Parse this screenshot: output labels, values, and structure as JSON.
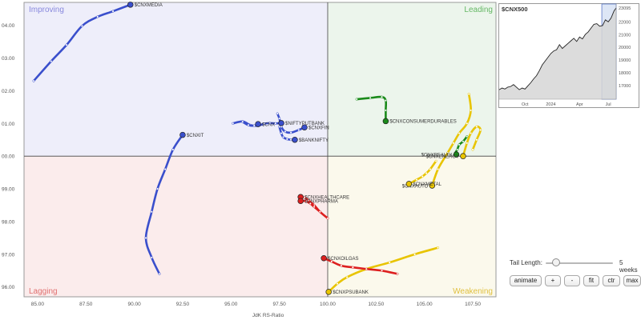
{
  "chart_data": [
    {
      "type": "scatter",
      "subtype": "relative-rotation-graph",
      "xlabel": "JdK RS-Ratio",
      "ylabel": "",
      "xlim": [
        84.3,
        108.7
      ],
      "ylim": [
        95.7,
        104.7
      ],
      "x_ticks": [
        "85.00",
        "87.50",
        "90.00",
        "92.50",
        "95.00",
        "97.50",
        "100.00",
        "102.50",
        "105.00",
        "107.50"
      ],
      "x_tick_values": [
        85,
        87.5,
        90,
        92.5,
        95,
        97.5,
        100,
        102.5,
        105,
        107.5
      ],
      "y_ticks": [
        "04.00",
        "03.00",
        "02.00",
        "01.00",
        "00.00",
        "99.00",
        "98.00",
        "97.00",
        "96.00"
      ],
      "y_tick_values": [
        104,
        103,
        102,
        101,
        100,
        99,
        98,
        97,
        96
      ],
      "center": [
        100,
        100
      ],
      "grid": false,
      "quadrants": [
        {
          "name": "Improving",
          "position": "top-left",
          "fill": "#eeeefa",
          "color": "#8888dd"
        },
        {
          "name": "Leading",
          "position": "top-right",
          "fill": "#ecf5ec",
          "color": "#66b866"
        },
        {
          "name": "Lagging",
          "position": "bottom-left",
          "fill": "#fbecec",
          "color": "#e07070"
        },
        {
          "name": "Weakening",
          "position": "bottom-right",
          "fill": "#fbf9ec",
          "color": "#e0c040"
        }
      ],
      "series": [
        {
          "name": "$CNXMEDIA",
          "color": "#3a4fcc",
          "label_side": "right",
          "x": [
            84.8,
            85.7,
            86.5,
            87.3,
            88.1,
            88.9,
            89.8
          ],
          "y": [
            102.3,
            102.9,
            103.4,
            103.98,
            104.26,
            104.43,
            104.63
          ]
        },
        {
          "name": "$CNXIT",
          "color": "#3a4fcc",
          "label_side": "right",
          "x": [
            91.3,
            90.9,
            90.6,
            90.9,
            91.2,
            91.6,
            92.0,
            92.5
          ],
          "y": [
            96.4,
            96.9,
            97.5,
            98.3,
            99.0,
            99.6,
            100.2,
            100.65
          ]
        },
        {
          "name": "$NIFTYPUTBANK",
          "color": "#3a4fcc",
          "label_side": "right",
          "x": [
            95.1,
            95.6,
            96.0,
            96.4,
            96.7,
            97.0,
            97.3,
            97.6
          ],
          "y": [
            101.0,
            101.06,
            100.95,
            100.93,
            100.99,
            101.01,
            101.0,
            101.01
          ]
        },
        {
          "name": "$CNXFIN",
          "color": "#3a4fcc",
          "label_side": "right",
          "x": [
            97.4,
            97.5,
            97.6,
            97.8,
            98.1,
            98.5,
            98.8
          ],
          "y": [
            101.3,
            101.15,
            100.9,
            100.75,
            100.72,
            100.8,
            100.88
          ]
        },
        {
          "name": "$BANKNIFTY",
          "color": "#3a4fcc",
          "label_side": "right",
          "x": [
            97.5,
            97.6,
            97.7,
            97.9,
            98.1,
            98.3
          ],
          "y": [
            100.9,
            100.7,
            100.58,
            100.52,
            100.5,
            100.5
          ]
        },
        {
          "name": "$CNX",
          "color": "#3a4fcc",
          "label_side": "right",
          "label_truncated": true,
          "x": [
            95.6,
            95.9,
            96.2,
            96.4
          ],
          "y": [
            101.05,
            100.95,
            100.93,
            100.98
          ]
        },
        {
          "name": "$CNXCONSUMERDURABLES",
          "color": "#1a8a1a",
          "label_side": "right",
          "x": [
            101.5,
            102.2,
            102.8,
            103.0,
            103.0,
            103.0
          ],
          "y": [
            101.74,
            101.78,
            101.81,
            101.7,
            101.4,
            101.07
          ]
        },
        {
          "name": "$CNXREALTY",
          "color": "#1a8a1a",
          "label_side": "left",
          "x": [
            107.2,
            107.0,
            106.8,
            106.7,
            106.6,
            106.65
          ],
          "y": [
            100.6,
            100.45,
            100.35,
            100.2,
            100.1,
            100.05
          ]
        },
        {
          "name": "$CNXAUTO",
          "color": "#e8c400",
          "label_side": "left",
          "x": [
            107.3,
            107.4,
            107.2,
            106.8,
            106.5,
            106.2,
            105.7,
            105.4
          ],
          "y": [
            101.9,
            101.4,
            101.0,
            100.7,
            100.4,
            100.1,
            99.6,
            99.1
          ]
        },
        {
          "name": "$CNXENERGY",
          "color": "#e8c400",
          "label_side": "left",
          "x": [
            107.5,
            107.7,
            107.9,
            107.7,
            107.4,
            107.2,
            107.0
          ],
          "y": [
            100.2,
            100.5,
            100.8,
            100.9,
            100.7,
            100.4,
            100.0
          ]
        },
        {
          "name": "$CNXMETAL",
          "color": "#e8c400",
          "label_side": "right",
          "x": [
            105.6,
            105.3,
            105.1,
            104.9,
            104.6,
            104.2
          ],
          "y": [
            99.85,
            99.6,
            99.48,
            99.38,
            99.28,
            99.15
          ]
        },
        {
          "name": "$CNXPSUBANK",
          "color": "#e8c400",
          "label_side": "right",
          "x": [
            105.7,
            104.5,
            103.2,
            102.0,
            101.0,
            100.5,
            100.05
          ],
          "y": [
            97.2,
            97.0,
            96.75,
            96.55,
            96.3,
            96.1,
            95.85
          ]
        },
        {
          "name": "$CNXHEALTHCARE",
          "color": "#dd1f1f",
          "label_side": "right",
          "x": [
            100.0,
            99.6,
            99.3,
            99.0,
            98.8,
            98.6
          ],
          "y": [
            98.1,
            98.3,
            98.5,
            98.65,
            98.73,
            98.75
          ]
        },
        {
          "name": "$CNXPHARMA",
          "color": "#dd1f1f",
          "label_side": "right",
          "x": [
            99.6,
            99.3,
            99.1,
            98.9,
            98.7,
            98.6
          ],
          "y": [
            98.3,
            98.45,
            98.55,
            98.62,
            98.64,
            98.63
          ]
        },
        {
          "name": "$CNXOILGAS",
          "color": "#dd1f1f",
          "label_side": "right",
          "x": [
            103.6,
            102.8,
            102.0,
            101.3,
            100.7,
            100.2,
            99.8
          ],
          "y": [
            96.4,
            96.5,
            96.55,
            96.6,
            96.65,
            96.78,
            96.88
          ]
        }
      ]
    },
    {
      "type": "area",
      "title": "$CNX500",
      "categories": [
        "Oct",
        "2024",
        "Apr",
        "Jul"
      ],
      "ylim": [
        15900,
        23400
      ],
      "y_ticks": [
        "23095",
        "22000",
        "21000",
        "20000",
        "19000",
        "18000",
        "17000"
      ],
      "y_tick_values": [
        23095,
        22000,
        21000,
        20000,
        19000,
        18000,
        17000
      ],
      "x": [
        0,
        4,
        8,
        12,
        16,
        20,
        24,
        28,
        32,
        36,
        40,
        44,
        48,
        52,
        56,
        60,
        64,
        68,
        72,
        76,
        80,
        84,
        88,
        92,
        96,
        100,
        104,
        108,
        112,
        116,
        120,
        124,
        128,
        132,
        136,
        140,
        144,
        148,
        152,
        156,
        160,
        163
      ],
      "values": [
        16650,
        16780,
        16700,
        16850,
        16900,
        17050,
        16850,
        16650,
        16780,
        16700,
        16950,
        17200,
        17500,
        17750,
        18150,
        18600,
        18900,
        19200,
        19500,
        19700,
        19800,
        20200,
        19900,
        20100,
        20300,
        20500,
        20700,
        20450,
        20800,
        20650,
        21000,
        21200,
        21500,
        21800,
        21850,
        21650,
        21700,
        22150,
        22000,
        22300,
        22850,
        23095
      ],
      "x_tick_positions": [
        36,
        72,
        112,
        152
      ],
      "highlight_window_start": 143,
      "color": "#222222"
    }
  ],
  "controls": {
    "tail_length_label": "Tail Length:",
    "tail_length_value": "5 weeks",
    "tail_length_fraction": 0.09,
    "buttons": [
      "animate",
      "+",
      "-",
      "fit",
      "ctr",
      "max"
    ]
  }
}
